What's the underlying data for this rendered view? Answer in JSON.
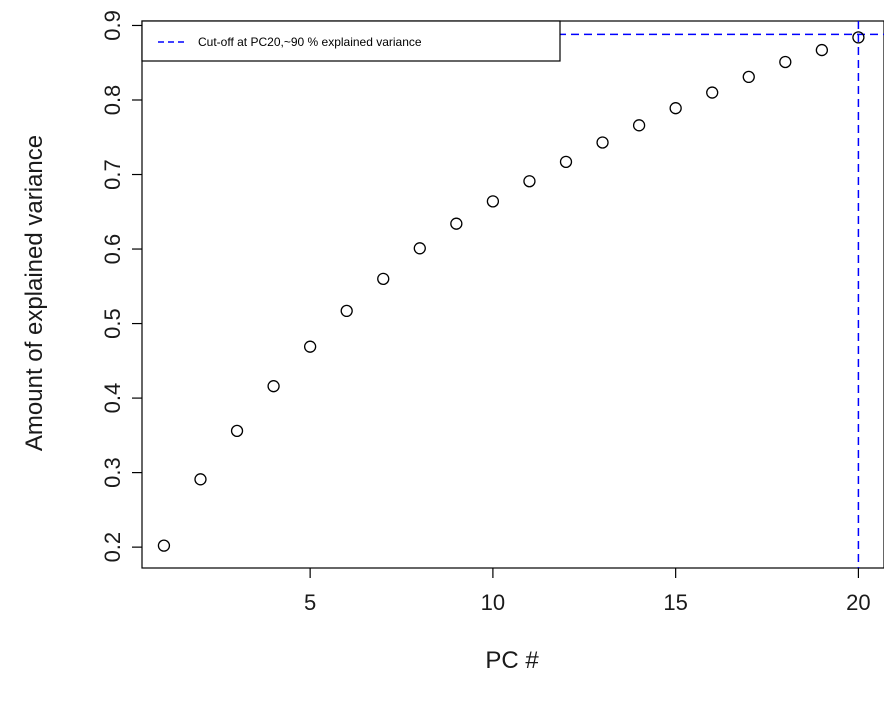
{
  "chart_data": {
    "type": "scatter",
    "xlabel": "PC #",
    "ylabel": "Amount of explained variance",
    "xlim": [
      0.4,
      20.7
    ],
    "ylim": [
      0.172,
      0.906
    ],
    "x_ticks": [
      5,
      10,
      15,
      20
    ],
    "x_tick_labels": [
      "5",
      "10",
      "15",
      "20"
    ],
    "y_ticks": [
      0.2,
      0.3,
      0.4,
      0.5,
      0.6,
      0.7,
      0.8,
      0.9
    ],
    "y_tick_labels": [
      "0.2",
      "0.3",
      "0.4",
      "0.5",
      "0.6",
      "0.7",
      "0.8",
      "0.9"
    ],
    "grid": false,
    "series": [
      {
        "x": [
          1,
          2,
          3,
          4,
          5,
          6,
          7,
          8,
          9,
          10,
          11,
          12,
          13,
          14,
          15,
          16,
          17,
          18,
          19,
          20
        ],
        "y": [
          0.202,
          0.291,
          0.356,
          0.416,
          0.469,
          0.517,
          0.56,
          0.601,
          0.634,
          0.664,
          0.691,
          0.717,
          0.743,
          0.766,
          0.789,
          0.81,
          0.831,
          0.851,
          0.867,
          0.884
        ],
        "marker": "open-circle",
        "color": "#000000"
      }
    ],
    "reference_lines": {
      "vertical_x": 20,
      "horizontal_y": 0.888,
      "color": "#0000ff",
      "style": "dashed"
    },
    "legend": {
      "position": "top-left",
      "entries": [
        {
          "label": "Cut-off at PC20,~90 % explained variance",
          "color": "#0000ff",
          "style": "dashed"
        }
      ]
    }
  }
}
